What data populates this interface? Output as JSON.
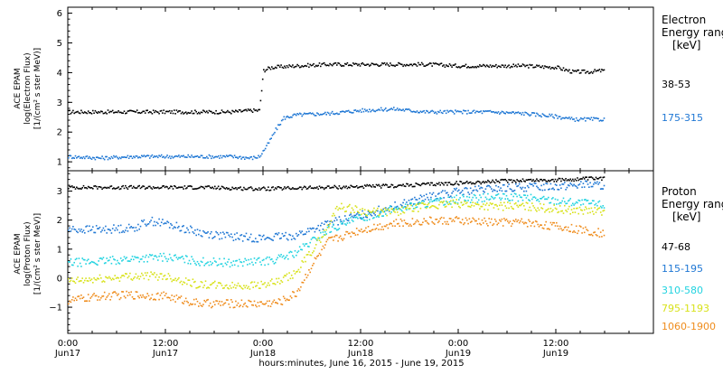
{
  "colors": {
    "black": "#000000",
    "blue": "#1f77d4",
    "cyan": "#22d3e0",
    "yellow": "#d8e21a",
    "orange": "#ef8c1c"
  },
  "footer": {
    "xlabel": "hours:minutes, June 16, 2015 - June 19, 2015"
  },
  "time_ticks": [
    {
      "hour": 0,
      "time": "0:00",
      "date": "Jun17"
    },
    {
      "hour": 12,
      "time": "12:00",
      "date": "Jun17"
    },
    {
      "hour": 24,
      "time": "0:00",
      "date": "Jun18"
    },
    {
      "hour": 36,
      "time": "12:00",
      "date": "Jun18"
    },
    {
      "hour": 48,
      "time": "0:00",
      "date": "Jun19"
    },
    {
      "hour": 60,
      "time": "12:00",
      "date": "Jun19"
    }
  ],
  "chart_data": [
    {
      "type": "scatter",
      "panel": "electron",
      "ylabel_lines": [
        "ACE EPAM",
        "log(Electron Flux)",
        "[1/(cm² s ster MeV)]"
      ],
      "ylim": [
        0.7,
        6.2
      ],
      "yticks": [
        1,
        2,
        3,
        4,
        5,
        6
      ],
      "xlim": [
        0,
        72
      ],
      "legend_title": [
        "Electron",
        "Energy ranges",
        "[keV]"
      ],
      "series": [
        {
          "name": "38-53",
          "color": "black",
          "x": [
            0,
            4,
            8,
            12,
            16,
            20,
            22.5,
            23.5,
            24,
            25,
            28,
            32,
            36,
            40,
            44,
            48,
            52,
            56,
            60,
            62,
            64,
            66
          ],
          "y": [
            2.7,
            2.7,
            2.7,
            2.7,
            2.7,
            2.7,
            2.75,
            2.75,
            4.1,
            4.2,
            4.25,
            4.3,
            4.3,
            4.3,
            4.3,
            4.25,
            4.25,
            4.25,
            4.2,
            4.05,
            4.05,
            4.1
          ]
        },
        {
          "name": "175-315",
          "color": "blue",
          "x": [
            0,
            4,
            8,
            12,
            16,
            20,
            22.5,
            23.5,
            24.5,
            25.5,
            26.5,
            28,
            32,
            36,
            40,
            44,
            48,
            52,
            56,
            60,
            62,
            64,
            66
          ],
          "y": [
            1.2,
            1.15,
            1.2,
            1.2,
            1.2,
            1.2,
            1.15,
            1.2,
            1.6,
            2.1,
            2.5,
            2.6,
            2.65,
            2.75,
            2.8,
            2.7,
            2.7,
            2.7,
            2.65,
            2.55,
            2.45,
            2.45,
            2.45
          ]
        }
      ]
    },
    {
      "type": "scatter",
      "panel": "proton",
      "ylabel_lines": [
        "ACE EPAM",
        "log(Proton Flux)",
        "[1/(cm² s ster MeV)]"
      ],
      "ylim": [
        -1.9,
        3.7
      ],
      "yticks": [
        -1,
        0,
        1,
        2,
        3
      ],
      "xlim": [
        0,
        72
      ],
      "legend_title": [
        "Proton",
        "Energy ranges",
        "[keV]"
      ],
      "series": [
        {
          "name": "47-68",
          "color": "black",
          "x": [
            0,
            8,
            16,
            24,
            32,
            40,
            44,
            48,
            52,
            56,
            60,
            64,
            66
          ],
          "y": [
            3.15,
            3.15,
            3.15,
            3.1,
            3.15,
            3.2,
            3.25,
            3.3,
            3.35,
            3.4,
            3.4,
            3.45,
            3.45
          ]
        },
        {
          "name": "115-195",
          "color": "blue",
          "x": [
            0,
            4,
            8,
            10,
            12,
            14,
            16,
            20,
            24,
            26,
            28,
            30,
            32,
            36,
            40,
            44,
            48,
            52,
            56,
            60,
            64,
            66
          ],
          "y": [
            1.7,
            1.7,
            1.75,
            2.0,
            1.9,
            1.75,
            1.6,
            1.45,
            1.4,
            1.45,
            1.5,
            1.7,
            1.9,
            2.2,
            2.5,
            2.8,
            3.0,
            3.1,
            3.15,
            3.2,
            3.25,
            3.2
          ]
        },
        {
          "name": "310-580",
          "color": "cyan",
          "x": [
            0,
            4,
            8,
            12,
            16,
            20,
            24,
            26,
            28,
            30,
            32,
            36,
            40,
            44,
            48,
            52,
            56,
            60,
            64,
            66
          ],
          "y": [
            0.55,
            0.6,
            0.7,
            0.75,
            0.6,
            0.55,
            0.6,
            0.7,
            0.9,
            1.3,
            1.7,
            2.1,
            2.4,
            2.6,
            2.75,
            2.8,
            2.8,
            2.7,
            2.6,
            2.55
          ]
        },
        {
          "name": "795-1193",
          "color": "yellow",
          "x": [
            0,
            4,
            8,
            12,
            16,
            20,
            24,
            26,
            28,
            30,
            32,
            33,
            35,
            37,
            40,
            44,
            48,
            52,
            56,
            60,
            64,
            66
          ],
          "y": [
            -0.1,
            0.0,
            0.1,
            0.1,
            -0.2,
            -0.25,
            -0.2,
            -0.1,
            0.2,
            1.0,
            1.8,
            2.5,
            2.4,
            2.3,
            2.3,
            2.5,
            2.6,
            2.5,
            2.5,
            2.4,
            2.35,
            2.3
          ]
        },
        {
          "name": "1060-1900",
          "color": "orange",
          "x": [
            0,
            4,
            8,
            12,
            16,
            20,
            24,
            26,
            28,
            30,
            32,
            36,
            40,
            44,
            48,
            52,
            56,
            60,
            64,
            66
          ],
          "y": [
            -0.75,
            -0.6,
            -0.55,
            -0.6,
            -0.85,
            -0.85,
            -0.85,
            -0.8,
            -0.5,
            0.5,
            1.3,
            1.7,
            1.9,
            2.0,
            2.0,
            1.95,
            1.95,
            1.8,
            1.65,
            1.55
          ]
        }
      ]
    }
  ]
}
